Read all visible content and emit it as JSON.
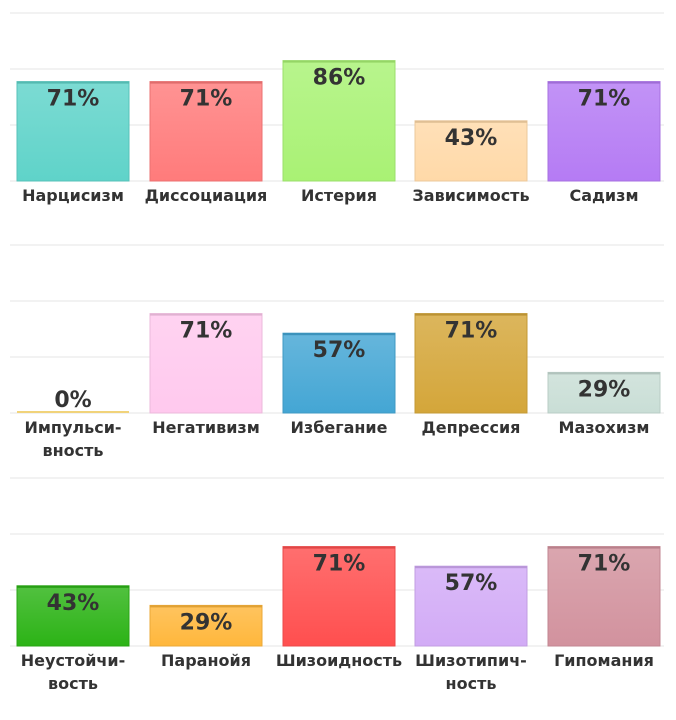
{
  "chart_data": [
    {
      "type": "bar",
      "categories": [
        "Нарцисизм",
        "Диссоциация",
        "Истерия",
        "Зависимость",
        "Садизм"
      ],
      "category_lines": [
        [
          "Нарцисизм"
        ],
        [
          "Диссоциация"
        ],
        [
          "Истерия"
        ],
        [
          "Зависимость"
        ],
        [
          "Садизм"
        ]
      ],
      "values": [
        71,
        71,
        86,
        43,
        71
      ],
      "value_labels": [
        "71%",
        "71%",
        "86%",
        "43%",
        "71%"
      ],
      "colors": [
        "#5fd3c9",
        "#ff7b7b",
        "#a9f274",
        "#ffd9a8",
        "#b57bf4"
      ],
      "ylim": [
        0,
        100
      ],
      "grid": true
    },
    {
      "type": "bar",
      "categories": [
        "Импульсивность",
        "Негативизм",
        "Избегание",
        "Депрессия",
        "Мазохизм"
      ],
      "category_lines": [
        [
          "Импульси-",
          "вность"
        ],
        [
          "Негативизм"
        ],
        [
          "Избегание"
        ],
        [
          "Депрессия"
        ],
        [
          "Мазохизм"
        ]
      ],
      "values": [
        0,
        71,
        57,
        71,
        29
      ],
      "value_labels": [
        "0%",
        "71%",
        "57%",
        "71%",
        "29%"
      ],
      "colors": [
        "#f1d37a",
        "#ffc9ee",
        "#44a6d4",
        "#d4a63a",
        "#c9ded6"
      ],
      "ylim": [
        0,
        100
      ],
      "grid": true
    },
    {
      "type": "bar",
      "categories": [
        "Неустойчивость",
        "Паранойя",
        "Шизоидность",
        "Шизотипичность",
        "Гипомания"
      ],
      "category_lines": [
        [
          "Неустойчи-",
          "вость"
        ],
        [
          "Паранойя"
        ],
        [
          "Шизоидность"
        ],
        [
          "Шизотипич-",
          "ность"
        ],
        [
          "Гипомания"
        ]
      ],
      "values": [
        43,
        29,
        71,
        57,
        71
      ],
      "value_labels": [
        "43%",
        "29%",
        "71%",
        "57%",
        "71%"
      ],
      "colors": [
        "#2cb316",
        "#ffb73c",
        "#ff4f4f",
        "#d2abf6",
        "#d2929e"
      ],
      "ylim": [
        0,
        100
      ],
      "grid": true
    }
  ]
}
